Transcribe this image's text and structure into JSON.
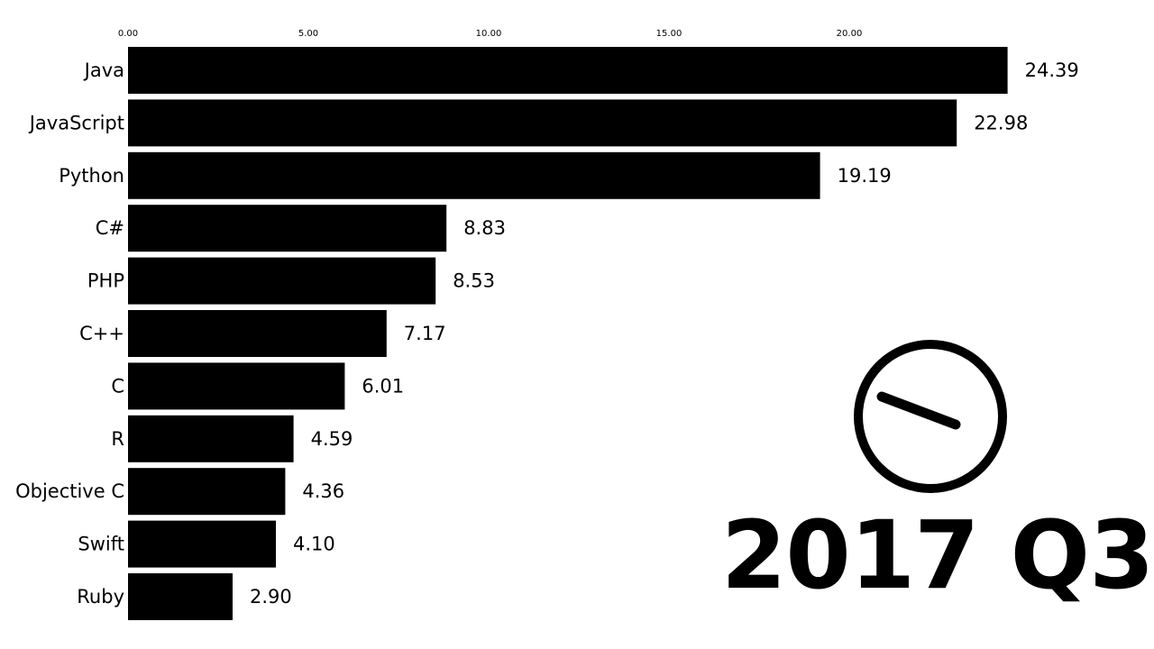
{
  "chart_data": {
    "type": "bar",
    "orientation": "horizontal",
    "categories": [
      "Java",
      "JavaScript",
      "Python",
      "C#",
      "PHP",
      "C++",
      "C",
      "R",
      "Objective C",
      "Swift",
      "Ruby"
    ],
    "values": [
      24.39,
      22.98,
      19.19,
      8.83,
      8.53,
      7.17,
      6.01,
      4.59,
      4.36,
      4.1,
      2.9
    ],
    "value_labels": [
      "24.39",
      "22.98",
      "19.19",
      "8.83",
      "8.53",
      "7.17",
      "6.01",
      "4.59",
      "4.36",
      "4.10",
      "2.90"
    ],
    "x_ticks": [
      0,
      5,
      10,
      15,
      20
    ],
    "x_tick_labels": [
      "0.00",
      "5.00",
      "10.00",
      "15.00",
      "20.00"
    ],
    "xlim": [
      0,
      25
    ],
    "axis_position": "top",
    "grid": false,
    "legend": "none",
    "title": "",
    "xlabel": "",
    "ylabel": "",
    "bar_color": "#000000",
    "period_label": "2017 Q3",
    "clock_icon": "clock-icon"
  }
}
